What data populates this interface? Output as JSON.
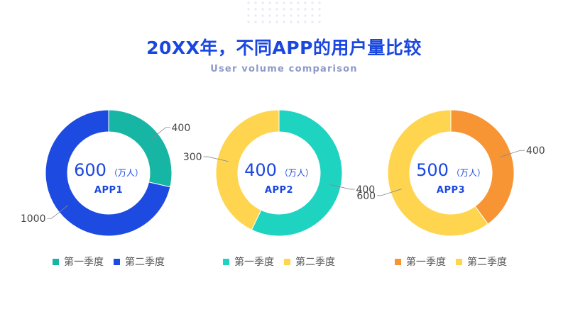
{
  "header": {
    "title": "20XX年，不同APP的用户量比较",
    "subtitle": "User volume comparison"
  },
  "chart_data": [
    {
      "type": "pie",
      "donut": true,
      "center_value": "600",
      "center_unit": "（万人）",
      "center_label": "APP1",
      "categories": [
        "第一季度",
        "第二季度"
      ],
      "values": [
        400,
        1000
      ],
      "colors": [
        "#17b5a4",
        "#1d4ae0"
      ],
      "legend": "bottom"
    },
    {
      "type": "pie",
      "donut": true,
      "center_value": "400",
      "center_unit": "（万人）",
      "center_label": "APP2",
      "categories": [
        "第一季度",
        "第二季度"
      ],
      "values": [
        400,
        300
      ],
      "colors": [
        "#1fd3c1",
        "#ffd54f"
      ],
      "legend": "bottom"
    },
    {
      "type": "pie",
      "donut": true,
      "center_value": "500",
      "center_unit": "（万人）",
      "center_label": "APP3",
      "categories": [
        "第一季度",
        "第二季度"
      ],
      "values": [
        400,
        600
      ],
      "colors": [
        "#f79433",
        "#ffd54f"
      ],
      "legend": "bottom"
    }
  ]
}
